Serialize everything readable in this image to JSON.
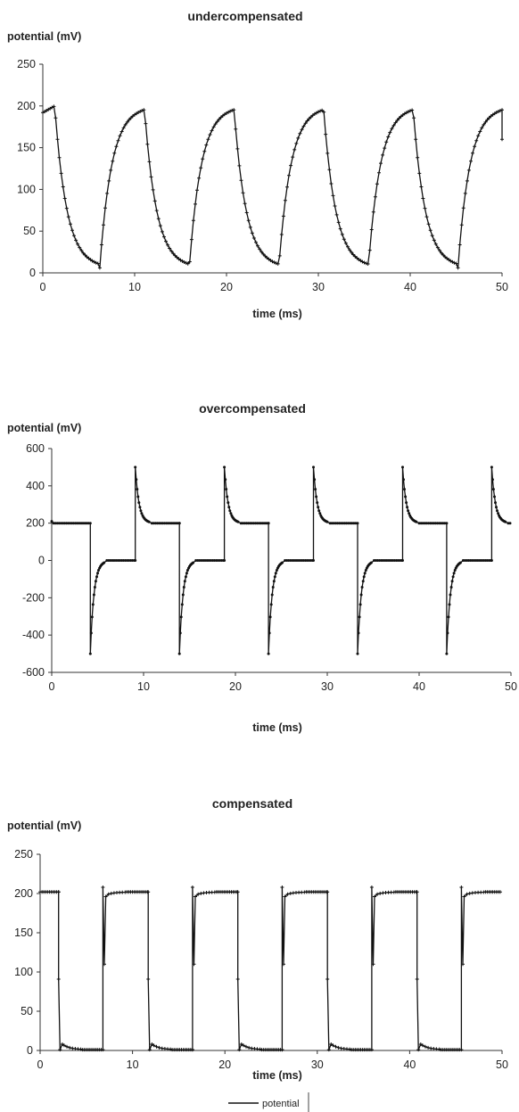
{
  "chart_data": [
    {
      "type": "line",
      "title": "undercompensated",
      "ylabel": "potential (mV)",
      "xlabel": "time (ms)",
      "xlim": [
        0,
        50
      ],
      "ylim": [
        0,
        250
      ],
      "xticks": [
        0,
        10,
        20,
        30,
        40,
        50
      ],
      "yticks": [
        0,
        50,
        100,
        150,
        200,
        250
      ],
      "grid": false,
      "series": [
        {
          "name": "potential",
          "color": "#111111",
          "marker": "plus",
          "waveform": {
            "kind": "exponential-relaxation",
            "period_ms": 9.75,
            "high_level_mV": 200,
            "low_level_mV": 6,
            "time_constant_ms": 1.3,
            "fall_starts_ms": [
              1.3,
              11.05,
              20.8,
              30.55,
              40.3
            ],
            "rise_starts_ms": [
              6.2,
              15.95,
              25.7,
              35.45,
              45.2
            ],
            "end_ms": 50,
            "end_value_mV": 160
          },
          "x": [
            0,
            1.3,
            2.5,
            4,
            6.2,
            7.4,
            9,
            11.05,
            12.3,
            14,
            15.95,
            17.2,
            19,
            20.8,
            22,
            24,
            25.7,
            27,
            29,
            30.55,
            31.8,
            33.5,
            35.45,
            36.7,
            38.5,
            40.3,
            41.5,
            43.5,
            45.2,
            46.5,
            48.5,
            49.8,
            50
          ],
          "y": [
            192,
            200,
            80,
            25,
            6,
            120,
            180,
            200,
            80,
            25,
            6,
            120,
            180,
            200,
            80,
            25,
            6,
            120,
            180,
            200,
            80,
            25,
            6,
            120,
            180,
            200,
            80,
            25,
            6,
            120,
            180,
            200,
            160
          ]
        }
      ]
    },
    {
      "type": "line",
      "title": "overcompensated",
      "ylabel": "potential (mV)",
      "xlabel": "time (ms)",
      "xlim": [
        0,
        50
      ],
      "ylim": [
        -600,
        600
      ],
      "xticks": [
        0,
        10,
        20,
        30,
        40,
        50
      ],
      "yticks": [
        -600,
        -400,
        -200,
        0,
        200,
        400,
        600
      ],
      "grid": false,
      "series": [
        {
          "name": "potential",
          "color": "#111111",
          "marker": "dot",
          "waveform": {
            "kind": "square-with-overshoot",
            "high_level_mV": 200,
            "low_level_mV": 0,
            "peak_mV": 500,
            "trough_mV": -500,
            "decay_ms": 0.4,
            "fall_edges_ms": [
              4.2,
              13.9,
              23.6,
              33.3,
              43.0
            ],
            "rise_edges_ms": [
              9.1,
              18.8,
              28.5,
              38.2,
              47.9
            ],
            "start_mV": 210,
            "end_ms": 50
          },
          "x": [
            0,
            4.2,
            4.2,
            5.2,
            9.1,
            9.1,
            10.1,
            13.9,
            13.9,
            14.9,
            18.8,
            18.8,
            19.8,
            23.6,
            23.6,
            24.6,
            28.5,
            28.5,
            29.5,
            33.3,
            33.3,
            34.3,
            38.2,
            38.2,
            39.2,
            43.0,
            43.0,
            44.0,
            47.9,
            47.9,
            48.9,
            50
          ],
          "y": [
            210,
            200,
            -500,
            0,
            0,
            500,
            200,
            200,
            -500,
            0,
            0,
            500,
            200,
            200,
            -500,
            0,
            0,
            500,
            200,
            200,
            -500,
            0,
            0,
            500,
            200,
            200,
            -500,
            0,
            0,
            500,
            200,
            200
          ]
        }
      ]
    },
    {
      "type": "line",
      "title": "compensated",
      "ylabel": "potential (mV)",
      "xlabel": "time (ms)",
      "xlim": [
        0,
        50
      ],
      "ylim": [
        0,
        250
      ],
      "xticks": [
        0,
        10,
        20,
        30,
        40,
        50
      ],
      "yticks": [
        0,
        50,
        100,
        150,
        200,
        250
      ],
      "grid": false,
      "legend": {
        "position": "bottom",
        "entries": [
          "potential"
        ]
      },
      "series": [
        {
          "name": "potential",
          "color": "#111111",
          "marker": "plus",
          "waveform": {
            "kind": "square",
            "high_level_mV": 202,
            "low_level_mV": 1,
            "overshoot_high_mV": 208,
            "overshoot_low_mV": 8,
            "fall_edges_ms": [
              2.0,
              11.7,
              21.4,
              31.1,
              40.8
            ],
            "rise_edges_ms": [
              6.8,
              16.5,
              26.2,
              35.9,
              45.6
            ],
            "end_ms": 50
          },
          "x": [
            0,
            2.0,
            2.0,
            2.4,
            6.8,
            6.8,
            7.2,
            11.7,
            11.7,
            12.1,
            16.5,
            16.5,
            16.9,
            21.4,
            21.4,
            21.8,
            26.2,
            26.2,
            26.6,
            31.1,
            31.1,
            31.5,
            35.9,
            35.9,
            36.3,
            40.8,
            40.8,
            41.2,
            45.6,
            45.6,
            46.0,
            50
          ],
          "y": [
            202,
            202,
            1,
            8,
            1,
            208,
            202,
            202,
            1,
            8,
            1,
            208,
            202,
            202,
            1,
            8,
            1,
            208,
            202,
            202,
            1,
            8,
            1,
            208,
            202,
            202,
            1,
            8,
            1,
            208,
            202,
            202
          ]
        }
      ]
    }
  ]
}
